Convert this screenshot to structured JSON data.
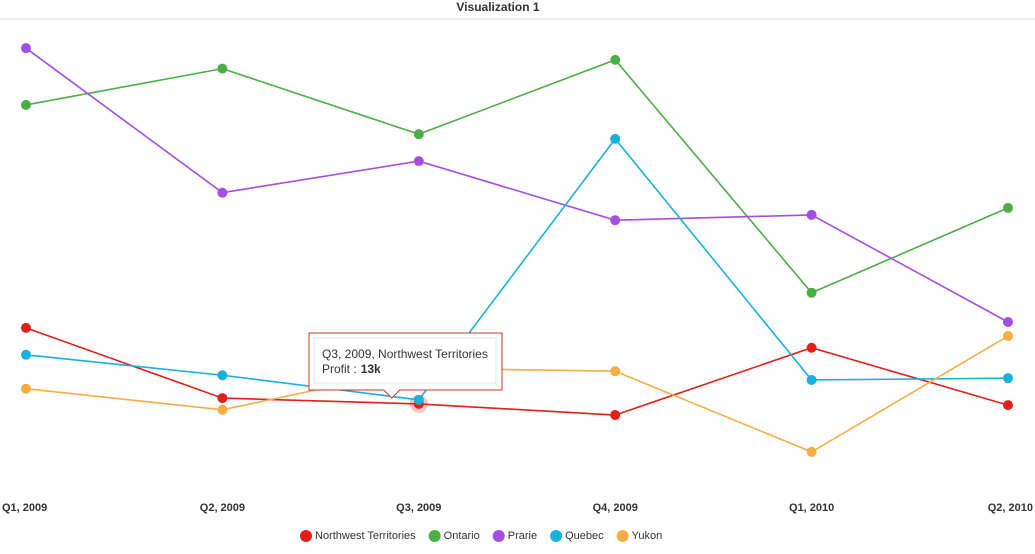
{
  "chart_data": {
    "type": "line",
    "title": "Visualization 1",
    "categories": [
      "Q1, 2009",
      "Q2, 2009",
      "Q3, 2009",
      "Q4, 2009",
      "Q1, 2010",
      "Q2, 2010"
    ],
    "ylim": [
      0,
      74
    ],
    "series": [
      {
        "name": "Northwest Territories",
        "color": "#e0201b",
        "values": [
          26.0,
          14.0,
          13,
          11.1,
          22.6,
          12.8
        ]
      },
      {
        "name": "Ontario",
        "color": "#4caf46",
        "values": [
          64.1,
          70.3,
          59.1,
          71.8,
          32.0,
          46.5
        ]
      },
      {
        "name": "Prarie",
        "color": "#a64ee0",
        "values": [
          73.8,
          49.1,
          54.5,
          44.4,
          45.3,
          27.0
        ]
      },
      {
        "name": "Quebec",
        "color": "#1ab0dc",
        "values": [
          21.4,
          17.9,
          13.7,
          58.3,
          17.1,
          17.4
        ]
      },
      {
        "name": "Yukon",
        "color": "#f5ad45",
        "values": [
          15.6,
          12.0,
          19.1,
          18.6,
          4.8,
          24.6
        ]
      }
    ],
    "tooltip": {
      "text": "Q3, 2009, Northwest Territories",
      "measure": "Profit :",
      "value": 13,
      "value_label": "13k",
      "series": 0,
      "point": 2
    }
  }
}
